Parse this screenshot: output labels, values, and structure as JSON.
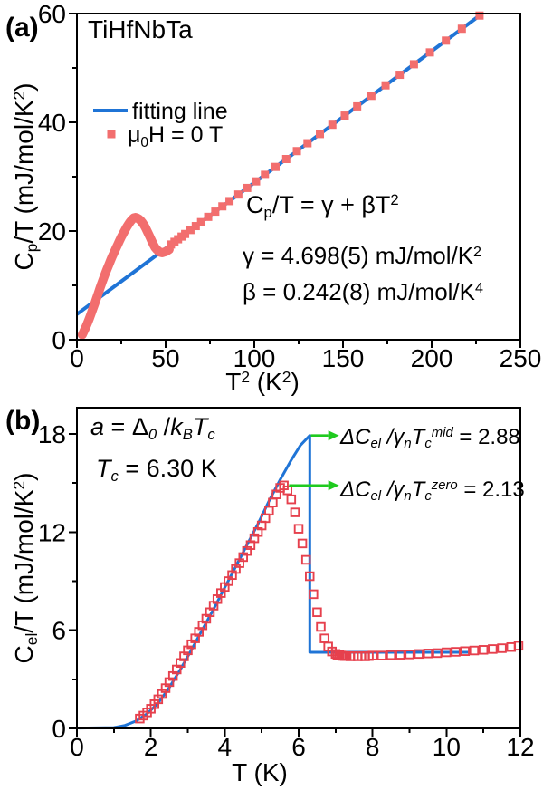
{
  "colors": {
    "fit_blue": "#1f74d6",
    "data_coral": "#f26e6e",
    "data_red": "#e6404d",
    "arrow_green": "#1fca1f",
    "axis_black": "#000000"
  },
  "figure": {
    "panel_a": {
      "label": "(a)",
      "title": "TiHfNbTa",
      "legend": {
        "fitting_line": "fitting line",
        "field_mu": "μ",
        "field_sub": "0",
        "field_rest": "H = 0 T"
      },
      "eq_main": {
        "c": "C",
        "sub": "p",
        "mid": "/T = γ + βT",
        "sup": "2"
      },
      "eq_gamma": {
        "main": "γ = 4.698(5) mJ/mol/K",
        "sup": "2"
      },
      "eq_beta": {
        "main": "β = 0.242(8) mJ/mol/K",
        "sup": "4"
      },
      "xlabel": {
        "t": "T",
        "sup1": "2",
        "mid": " (K",
        "sup2": "2",
        "end": ")"
      },
      "ylabel": {
        "c": "C",
        "sub": "p",
        "mid": "/T (mJ/mol/K",
        "sup": "2",
        "end": ")"
      }
    },
    "panel_b": {
      "label": "(b)",
      "alpha_eq": {
        "a": "a",
        "eq": " = ",
        "delta": "Δ",
        "sub0": "0",
        "slash": " /",
        "k": "k",
        "subB": "B",
        "t": "T",
        "subc": "c"
      },
      "tc_eq": {
        "t": "T",
        "subc": "c",
        "rest": " = 6.30 K"
      },
      "jump_mid": {
        "dc": "ΔC",
        "sub1": "el",
        "slash": " /γ",
        "sub2": "n",
        "t": "T",
        "sub3": "c",
        "sup": "mid",
        "val": " = 2.88"
      },
      "jump_zero": {
        "dc": "ΔC",
        "sub1": "el",
        "slash": " /γ",
        "sub2": "n",
        "t": "T",
        "sub3": "c",
        "sup": "zero",
        "val": " = 2.13"
      },
      "xlabel": "T (K)",
      "ylabel": {
        "c": "C",
        "sub": "el",
        "mid": "/T (mJ/mol/K",
        "sup": "2",
        "end": ")"
      }
    }
  },
  "chart_data": [
    {
      "type": "scatter",
      "panel": "a",
      "title": "TiHfNbTa",
      "xlabel": "T^2 (K^2)",
      "ylabel": "Cp/T (mJ/mol/K^2)",
      "xlim": [
        0,
        250
      ],
      "ylim": [
        0,
        60
      ],
      "x_major_ticks": [
        0,
        50,
        100,
        150,
        200,
        250
      ],
      "x_minor_ticks": [
        25,
        75,
        125,
        175,
        225
      ],
      "y_major_ticks": [
        0,
        20,
        40,
        60
      ],
      "y_minor_ticks": [
        10,
        30,
        50
      ],
      "legend": [
        "fitting line",
        "μ0H = 0 T"
      ],
      "fit_gamma": "4.698(5)",
      "fit_beta": "0.242(8)",
      "fit_line": {
        "x0": 0,
        "y0": 4.698,
        "x1": 228,
        "y1": 59.87
      },
      "data_dense": [
        [
          3,
          0.9
        ],
        [
          4,
          1.6
        ],
        [
          5,
          2.3
        ],
        [
          6,
          3.1
        ],
        [
          7,
          3.9
        ],
        [
          8,
          4.8
        ],
        [
          9,
          5.7
        ],
        [
          10,
          6.6
        ],
        [
          11,
          7.6
        ],
        [
          12,
          8.5
        ],
        [
          13,
          9.5
        ],
        [
          14,
          10.4
        ],
        [
          15,
          11.3
        ],
        [
          16,
          12.2
        ],
        [
          17,
          13.0
        ],
        [
          18,
          13.8
        ],
        [
          19,
          14.6
        ],
        [
          20,
          15.4
        ],
        [
          21,
          16.1
        ],
        [
          22,
          16.8
        ],
        [
          23,
          17.5
        ],
        [
          24,
          18.2
        ],
        [
          25,
          18.9
        ],
        [
          26,
          19.5
        ],
        [
          27,
          20.1
        ],
        [
          28,
          20.7
        ],
        [
          29,
          21.2
        ],
        [
          30,
          21.7
        ],
        [
          31,
          22.1
        ],
        [
          32,
          22.4
        ],
        [
          33,
          22.5
        ],
        [
          34,
          22.4
        ],
        [
          35,
          22.2
        ],
        [
          36,
          21.9
        ],
        [
          37,
          21.5
        ],
        [
          38,
          21.0
        ],
        [
          39,
          20.4
        ],
        [
          40,
          19.7
        ],
        [
          41,
          19.0
        ],
        [
          42,
          18.3
        ],
        [
          43,
          17.6
        ],
        [
          44,
          17.0
        ],
        [
          45,
          16.6
        ],
        [
          46,
          16.3
        ],
        [
          47,
          16.1
        ],
        [
          48,
          16.0
        ],
        [
          49,
          16.1
        ],
        [
          50,
          16.2
        ],
        [
          51,
          16.4
        ],
        [
          52,
          16.6
        ]
      ],
      "data_squares": [
        [
          53,
          17.52
        ],
        [
          55,
          18.01
        ],
        [
          57,
          18.49
        ],
        [
          59,
          18.98
        ],
        [
          61,
          19.46
        ],
        [
          64,
          20.19
        ],
        [
          67,
          20.91
        ],
        [
          70,
          21.64
        ],
        [
          74,
          22.61
        ],
        [
          78,
          23.57
        ],
        [
          82,
          24.54
        ],
        [
          86,
          25.51
        ],
        [
          91,
          26.72
        ],
        [
          96,
          27.93
        ],
        [
          101,
          29.14
        ],
        [
          106,
          30.35
        ],
        [
          112,
          31.8
        ],
        [
          118,
          33.25
        ],
        [
          124,
          34.71
        ],
        [
          130,
          36.16
        ],
        [
          137,
          37.85
        ],
        [
          144,
          39.55
        ],
        [
          151,
          41.24
        ],
        [
          158,
          42.93
        ],
        [
          166,
          44.87
        ],
        [
          174,
          46.8
        ],
        [
          182,
          48.74
        ],
        [
          190,
          50.68
        ],
        [
          199,
          52.86
        ],
        [
          208,
          55.03
        ],
        [
          217,
          57.21
        ],
        [
          227,
          59.63
        ]
      ]
    },
    {
      "type": "scatter",
      "panel": "b",
      "xlabel": "T (K)",
      "ylabel": "Cel/T (mJ/mol/K^2)",
      "xlim": [
        0,
        12
      ],
      "ylim": [
        0,
        19.6
      ],
      "x_major_ticks": [
        0,
        2,
        4,
        6,
        8,
        10,
        12
      ],
      "x_minor_ticks": [
        1,
        3,
        5,
        7,
        9,
        11
      ],
      "y_major_ticks": [
        0,
        6,
        12,
        18
      ],
      "y_minor_ticks": [
        3,
        9,
        15
      ],
      "tc_kelvin": "6.30",
      "jump_mid_value": "2.88",
      "jump_zero_value": "2.13",
      "bcs_line": [
        [
          0.05,
          0.02
        ],
        [
          1.0,
          0.05
        ],
        [
          1.3,
          0.18
        ],
        [
          1.6,
          0.45
        ],
        [
          1.9,
          0.9
        ],
        [
          2.2,
          1.55
        ],
        [
          2.5,
          2.5
        ],
        [
          2.8,
          3.6
        ],
        [
          3.1,
          4.8
        ],
        [
          3.4,
          6.05
        ],
        [
          3.7,
          7.3
        ],
        [
          4.0,
          8.6
        ],
        [
          4.3,
          9.9
        ],
        [
          4.6,
          11.2
        ],
        [
          4.9,
          12.5
        ],
        [
          5.2,
          13.9
        ],
        [
          5.5,
          15.2
        ],
        [
          5.8,
          16.4
        ],
        [
          6.05,
          17.3
        ],
        [
          6.3,
          17.9
        ]
      ],
      "jump_line": {
        "x": 6.3,
        "top": 17.9,
        "base": 4.65,
        "x_end": 10.65
      },
      "arrows": [
        {
          "x1": 6.33,
          "y": 17.9,
          "x2": 6.8
        },
        {
          "x1": 5.74,
          "y": 14.85,
          "x2": 6.8
        }
      ],
      "data_squares": [
        [
          1.7,
          0.6
        ],
        [
          1.8,
          0.78
        ],
        [
          1.9,
          0.98
        ],
        [
          2.0,
          1.2
        ],
        [
          2.1,
          1.48
        ],
        [
          2.2,
          1.78
        ],
        [
          2.3,
          2.1
        ],
        [
          2.4,
          2.46
        ],
        [
          2.5,
          2.83
        ],
        [
          2.6,
          3.2
        ],
        [
          2.7,
          3.6
        ],
        [
          2.8,
          4.0
        ],
        [
          2.9,
          4.4
        ],
        [
          3.0,
          4.77
        ],
        [
          3.1,
          5.14
        ],
        [
          3.2,
          5.5
        ],
        [
          3.3,
          5.9
        ],
        [
          3.4,
          6.3
        ],
        [
          3.5,
          6.7
        ],
        [
          3.6,
          7.1
        ],
        [
          3.7,
          7.5
        ],
        [
          3.8,
          7.9
        ],
        [
          3.9,
          8.27
        ],
        [
          4.0,
          8.64
        ],
        [
          4.1,
          9.0
        ],
        [
          4.2,
          9.37
        ],
        [
          4.3,
          9.74
        ],
        [
          4.4,
          10.1
        ],
        [
          4.5,
          10.47
        ],
        [
          4.6,
          10.84
        ],
        [
          4.7,
          11.2
        ],
        [
          4.8,
          11.62
        ],
        [
          4.9,
          12.0
        ],
        [
          5.0,
          12.4
        ],
        [
          5.1,
          12.85
        ],
        [
          5.2,
          13.3
        ],
        [
          5.3,
          13.8
        ],
        [
          5.4,
          14.3
        ],
        [
          5.5,
          14.7
        ],
        [
          5.6,
          14.85
        ],
        [
          5.7,
          14.55
        ],
        [
          5.8,
          14.0
        ],
        [
          5.9,
          13.2
        ],
        [
          6.0,
          12.2
        ],
        [
          6.1,
          11.3
        ],
        [
          6.2,
          10.3
        ],
        [
          6.3,
          9.3
        ],
        [
          6.4,
          8.2
        ],
        [
          6.5,
          7.1
        ],
        [
          6.6,
          6.2
        ],
        [
          6.7,
          5.5
        ],
        [
          6.8,
          5.0
        ],
        [
          6.9,
          4.7
        ],
        [
          7.0,
          4.55
        ],
        [
          7.05,
          4.5
        ],
        [
          7.1,
          4.48
        ],
        [
          7.15,
          4.45
        ],
        [
          7.2,
          4.43
        ],
        [
          7.25,
          4.42
        ],
        [
          7.3,
          4.42
        ],
        [
          7.4,
          4.4
        ],
        [
          7.5,
          4.42
        ],
        [
          7.6,
          4.4
        ],
        [
          7.7,
          4.42
        ],
        [
          7.8,
          4.4
        ],
        [
          7.9,
          4.42
        ],
        [
          8.0,
          4.45
        ],
        [
          8.25,
          4.45
        ],
        [
          8.5,
          4.48
        ],
        [
          8.75,
          4.5
        ],
        [
          9.0,
          4.52
        ],
        [
          9.25,
          4.55
        ],
        [
          9.5,
          4.58
        ],
        [
          9.75,
          4.6
        ],
        [
          10.0,
          4.65
        ],
        [
          10.25,
          4.68
        ],
        [
          10.5,
          4.72
        ],
        [
          10.75,
          4.76
        ],
        [
          11.0,
          4.8
        ],
        [
          11.25,
          4.85
        ],
        [
          11.5,
          4.9
        ],
        [
          11.75,
          4.97
        ],
        [
          11.95,
          5.05
        ]
      ]
    }
  ]
}
